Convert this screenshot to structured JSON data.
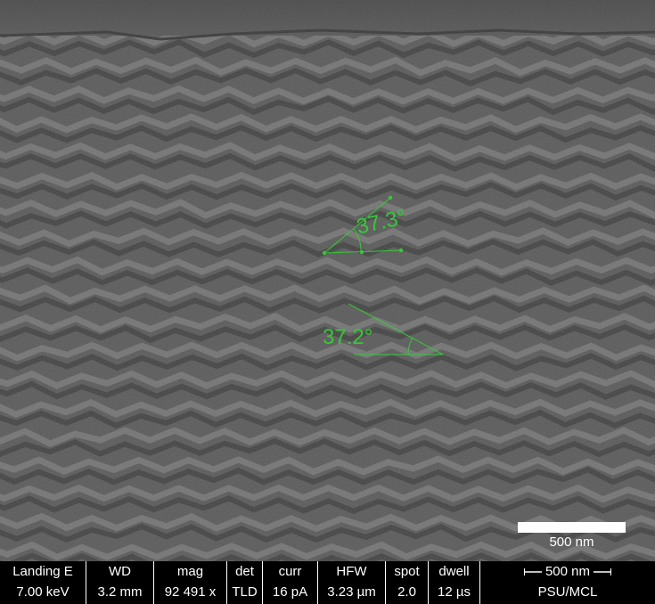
{
  "image": {
    "subject": "sem-micrograph-zigzag-columns",
    "colors": {
      "background": "#5e5e5e",
      "annotation": "#37c837",
      "text": "#ffffff"
    }
  },
  "annotations": {
    "angle_upper_label": "37.3°",
    "angle_lower_label": "37.2°"
  },
  "scalebar": {
    "label": "500 nm"
  },
  "databar": {
    "columns": [
      {
        "header": "Landing E",
        "value": "7.00 keV"
      },
      {
        "header": "WD",
        "value": "3.2 mm"
      },
      {
        "header": "mag",
        "value": "92 491 x"
      },
      {
        "header": "det",
        "value": "TLD"
      },
      {
        "header": "curr",
        "value": "16 pA"
      },
      {
        "header": "HFW",
        "value": "3.23 µm"
      },
      {
        "header": "spot",
        "value": "2.0"
      },
      {
        "header": "dwell",
        "value": "12 µs"
      }
    ],
    "scale_header": "500 nm",
    "lab": "PSU/MCL"
  }
}
